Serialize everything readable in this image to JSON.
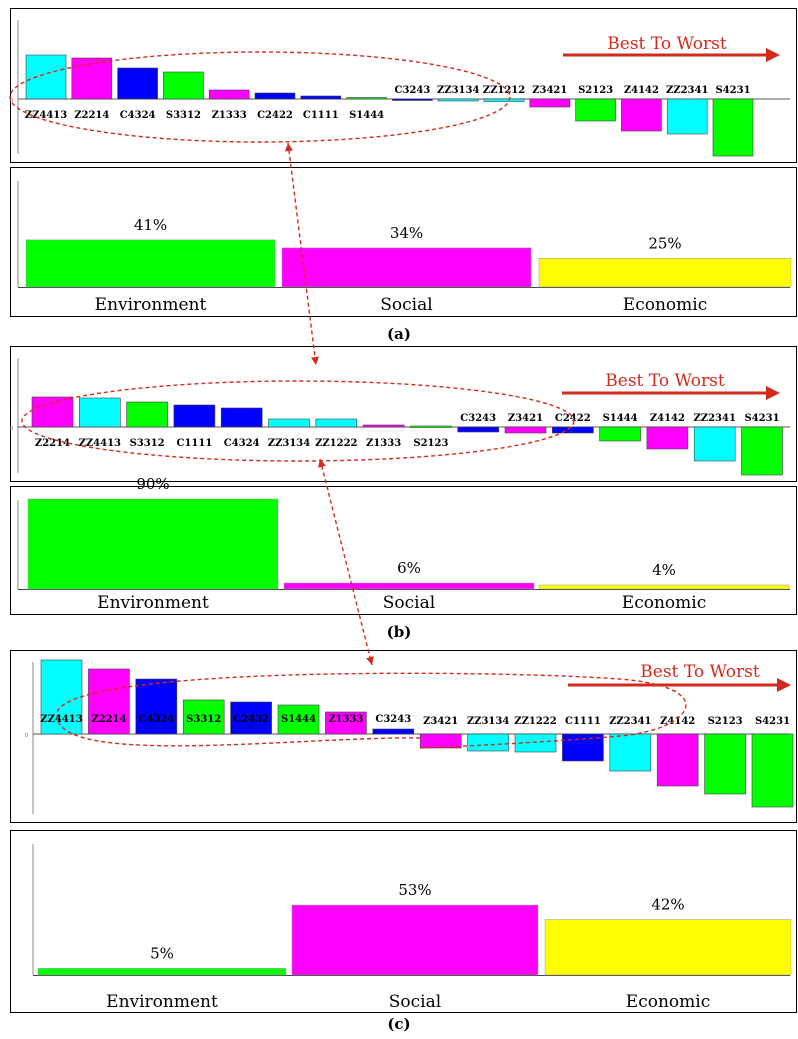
{
  "colors": {
    "cyan": "#00FFFF",
    "magenta": "#FF00FF",
    "blue": "#0000FF",
    "green": "#00FF00",
    "yellow": "#FFFF00",
    "annotation_red": "#D42A1C"
  },
  "annotation_text": "Best To Worst",
  "chart_data": [
    {
      "type": "bar",
      "caption": "(a)",
      "ranking": {
        "categories": [
          "ZZ4413",
          "Z2214",
          "C4324",
          "S3312",
          "Z1333",
          "C2422",
          "C1111",
          "S1444",
          "C3243",
          "ZZ3134",
          "ZZ1212",
          "Z3421",
          "S2123",
          "Z4142",
          "ZZ2341",
          "S4231"
        ],
        "values": [
          44,
          41,
          31,
          27,
          9,
          6,
          3,
          1.5,
          -1.5,
          -2,
          -2.5,
          -8,
          -22,
          -32,
          -35,
          -57
        ],
        "bar_colors": [
          "cyan",
          "magenta",
          "blue",
          "green",
          "magenta",
          "blue",
          "blue",
          "green",
          "blue",
          "cyan",
          "cyan",
          "magenta",
          "green",
          "magenta",
          "cyan",
          "green"
        ],
        "ylim": [
          -60,
          50
        ]
      },
      "weights": {
        "categories": [
          "Environment",
          "Social",
          "Economic"
        ],
        "values": [
          41,
          34,
          25
        ],
        "labels": [
          "41%",
          "34%",
          "25%"
        ],
        "bar_colors": [
          "green",
          "magenta",
          "yellow"
        ],
        "ylim": [
          0,
          100
        ]
      }
    },
    {
      "type": "bar",
      "caption": "(b)",
      "ranking": {
        "categories": [
          "Z2214",
          "ZZ4413",
          "S3312",
          "C1111",
          "C4324",
          "ZZ3134",
          "ZZ1222",
          "Z1333",
          "S2123",
          "C3243",
          "Z3421",
          "C2422",
          "S1444",
          "Z4142",
          "ZZ2341",
          "S4231"
        ],
        "values": [
          30,
          29,
          25,
          22,
          19,
          8,
          8,
          2,
          1,
          -5,
          -6,
          -6,
          -14,
          -22,
          -34,
          -48
        ],
        "bar_colors": [
          "magenta",
          "cyan",
          "green",
          "blue",
          "blue",
          "cyan",
          "cyan",
          "magenta",
          "green",
          "blue",
          "magenta",
          "blue",
          "green",
          "magenta",
          "cyan",
          "green"
        ],
        "ylim": [
          -55,
          35
        ]
      },
      "weights": {
        "categories": [
          "Environment",
          "Social",
          "Economic"
        ],
        "values": [
          90,
          6,
          4
        ],
        "labels": [
          "90%",
          "6%",
          "4%"
        ],
        "bar_colors": [
          "green",
          "magenta",
          "yellow"
        ],
        "ylim": [
          0,
          100
        ]
      }
    },
    {
      "type": "bar",
      "caption": "(c)",
      "ranking": {
        "categories": [
          "ZZ4413",
          "Z2214",
          "C4324",
          "S3312",
          "C2432",
          "S1444",
          "Z1333",
          "C3243",
          "Z3421",
          "ZZ3134",
          "ZZ1222",
          "C1111",
          "ZZ2341",
          "Z4142",
          "S2123",
          "S4231"
        ],
        "values": [
          74,
          65,
          55,
          34,
          32,
          29,
          22,
          5,
          -14,
          -17,
          -18,
          -27,
          -37,
          -52,
          -60,
          -73
        ],
        "bar_colors": [
          "cyan",
          "magenta",
          "blue",
          "green",
          "blue",
          "green",
          "magenta",
          "blue",
          "magenta",
          "cyan",
          "cyan",
          "blue",
          "cyan",
          "magenta",
          "green",
          "green"
        ],
        "ylim": [
          -75,
          80
        ]
      },
      "weights": {
        "categories": [
          "Environment",
          "Social",
          "Economic"
        ],
        "values": [
          5,
          53,
          42
        ],
        "labels": [
          "5%",
          "53%",
          "42%"
        ],
        "bar_colors": [
          "green",
          "magenta",
          "yellow"
        ],
        "ylim": [
          0,
          100
        ]
      }
    }
  ]
}
